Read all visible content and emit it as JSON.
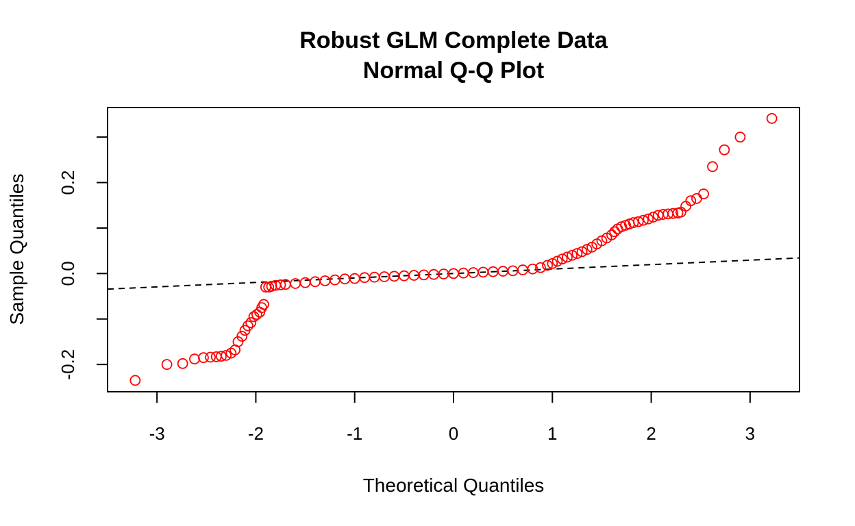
{
  "chart_data": {
    "type": "scatter",
    "title": "Robust GLM Complete Data",
    "subtitle": "Normal Q-Q Plot",
    "xlabel": "Theoretical Quantiles",
    "ylabel": "Sample Quantiles",
    "xlim": [
      -3.5,
      3.5
    ],
    "ylim": [
      -0.26,
      0.365
    ],
    "x_ticks": [
      -3,
      -2,
      -1,
      0,
      1,
      2,
      3
    ],
    "x_tick_labels": [
      "-3",
      "-2",
      "-1",
      "0",
      "1",
      "2",
      "3"
    ],
    "y_ticks": [
      -0.2,
      -0.1,
      0.0,
      0.1,
      0.2,
      0.3
    ],
    "y_tick_labels": [
      "-0.2",
      "",
      "0.0",
      "",
      "0.2",
      ""
    ],
    "grid": false,
    "point_color": "#ff0000",
    "line_color": "#000000",
    "reference_line": {
      "style": "dashed",
      "intercept": 0.0,
      "slope": 0.0098
    },
    "series": [
      {
        "points": [
          [
            -3.22,
            -0.235
          ],
          [
            -2.9,
            -0.2
          ],
          [
            -2.74,
            -0.198
          ],
          [
            -2.62,
            -0.188
          ],
          [
            -2.53,
            -0.185
          ],
          [
            -2.46,
            -0.184
          ],
          [
            -2.4,
            -0.183
          ],
          [
            -2.35,
            -0.182
          ],
          [
            -2.3,
            -0.18
          ],
          [
            -2.25,
            -0.175
          ],
          [
            -2.21,
            -0.168
          ],
          [
            -2.18,
            -0.15
          ],
          [
            -2.14,
            -0.138
          ],
          [
            -2.11,
            -0.125
          ],
          [
            -2.08,
            -0.115
          ],
          [
            -2.05,
            -0.108
          ],
          [
            -2.02,
            -0.095
          ],
          [
            -1.99,
            -0.09
          ],
          [
            -1.96,
            -0.085
          ],
          [
            -1.94,
            -0.075
          ],
          [
            -1.92,
            -0.068
          ],
          [
            -1.9,
            -0.03
          ],
          [
            -1.87,
            -0.03
          ],
          [
            -1.84,
            -0.028
          ],
          [
            -1.8,
            -0.026
          ],
          [
            -1.75,
            -0.025
          ],
          [
            -1.7,
            -0.024
          ],
          [
            -1.6,
            -0.022
          ],
          [
            -1.5,
            -0.02
          ],
          [
            -1.4,
            -0.018
          ],
          [
            -1.3,
            -0.016
          ],
          [
            -1.2,
            -0.014
          ],
          [
            -1.1,
            -0.012
          ],
          [
            -1.0,
            -0.011
          ],
          [
            -0.9,
            -0.009
          ],
          [
            -0.8,
            -0.008
          ],
          [
            -0.7,
            -0.007
          ],
          [
            -0.6,
            -0.006
          ],
          [
            -0.5,
            -0.005
          ],
          [
            -0.4,
            -0.004
          ],
          [
            -0.3,
            -0.003
          ],
          [
            -0.2,
            -0.002
          ],
          [
            -0.1,
            -0.001
          ],
          [
            0.0,
            0.0
          ],
          [
            0.1,
            0.001
          ],
          [
            0.2,
            0.002
          ],
          [
            0.3,
            0.003
          ],
          [
            0.4,
            0.004
          ],
          [
            0.5,
            0.005
          ],
          [
            0.6,
            0.006
          ],
          [
            0.7,
            0.008
          ],
          [
            0.8,
            0.01
          ],
          [
            0.88,
            0.013
          ],
          [
            0.95,
            0.018
          ],
          [
            1.0,
            0.022
          ],
          [
            1.05,
            0.027
          ],
          [
            1.1,
            0.032
          ],
          [
            1.15,
            0.036
          ],
          [
            1.2,
            0.04
          ],
          [
            1.25,
            0.044
          ],
          [
            1.3,
            0.048
          ],
          [
            1.35,
            0.053
          ],
          [
            1.4,
            0.058
          ],
          [
            1.45,
            0.065
          ],
          [
            1.5,
            0.072
          ],
          [
            1.55,
            0.078
          ],
          [
            1.6,
            0.085
          ],
          [
            1.63,
            0.092
          ],
          [
            1.66,
            0.098
          ],
          [
            1.7,
            0.103
          ],
          [
            1.74,
            0.106
          ],
          [
            1.78,
            0.109
          ],
          [
            1.82,
            0.112
          ],
          [
            1.87,
            0.114
          ],
          [
            1.92,
            0.117
          ],
          [
            1.97,
            0.12
          ],
          [
            2.02,
            0.124
          ],
          [
            2.07,
            0.128
          ],
          [
            2.12,
            0.13
          ],
          [
            2.17,
            0.131
          ],
          [
            2.22,
            0.132
          ],
          [
            2.27,
            0.133
          ],
          [
            2.3,
            0.135
          ],
          [
            2.35,
            0.148
          ],
          [
            2.4,
            0.16
          ],
          [
            2.46,
            0.165
          ],
          [
            2.53,
            0.175
          ],
          [
            2.62,
            0.235
          ],
          [
            2.74,
            0.272
          ],
          [
            2.9,
            0.3
          ],
          [
            3.22,
            0.341
          ]
        ]
      }
    ]
  }
}
